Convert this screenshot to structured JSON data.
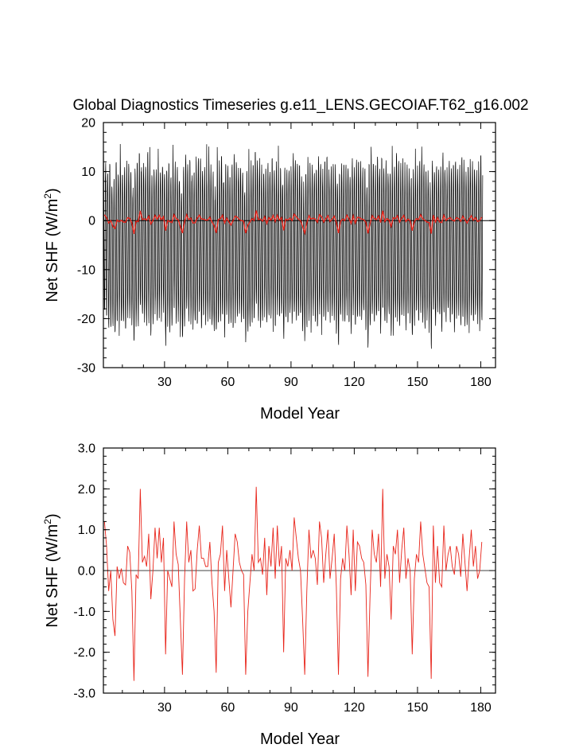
{
  "title": "Global Diagnostics Timeseries g.e11_LENS.GECOIAF.T62_g16.002",
  "colors": {
    "monthly": "#000000",
    "annual": "#e8251b",
    "zero_line": "#000000"
  },
  "chart_data": [
    {
      "type": "line",
      "ylabel": "Net SHF (W/m",
      "ylabel_sup": "2",
      "ylabel_close": ")",
      "xlabel": "Model Year",
      "xlim": [
        1,
        187
      ],
      "ylim": [
        -30,
        20
      ],
      "x_tick_labels": [
        "30",
        "60",
        "90",
        "120",
        "150",
        "180"
      ],
      "y_tick_labels": [
        "20",
        "10",
        "0",
        "-10",
        "-20",
        "-30"
      ],
      "grid": false,
      "series": [
        {
          "kind": "monthly",
          "cycle_amplitude_approx": 15,
          "typical_min": -21,
          "typical_max": 11,
          "extreme_min": -24,
          "extreme_max": 16
        },
        {
          "kind": "annual",
          "values_ref": "annual_means"
        }
      ]
    },
    {
      "type": "line",
      "ylabel": "Net SHF (W/m",
      "ylabel_sup": "2",
      "ylabel_close": ")",
      "xlabel": "Model Year",
      "xlim": [
        1,
        187
      ],
      "ylim": [
        -3.0,
        3.0
      ],
      "x_tick_labels": [
        "30",
        "60",
        "90",
        "120",
        "150",
        "180"
      ],
      "y_tick_labels": [
        "3.0",
        "2.0",
        "1.0",
        "0.0",
        "-1.0",
        "-2.0",
        "-3.0"
      ],
      "grid": false,
      "reference_line": 0
    }
  ],
  "annual_means": [
    1.2,
    0.6,
    -0.5,
    0.0,
    -1.2,
    -1.6,
    0.1,
    -0.2,
    0.05,
    -0.3,
    -0.35,
    0.6,
    0.45,
    -0.5,
    -2.7,
    -0.1,
    -0.2,
    2.0,
    0.2,
    0.35,
    0.1,
    0.9,
    -0.7,
    0.0,
    1.05,
    0.3,
    1.05,
    0.2,
    0.8,
    -2.05,
    0.0,
    -0.2,
    -0.4,
    1.2,
    0.4,
    0.15,
    -1.2,
    -2.55,
    -0.2,
    1.2,
    0.2,
    0.5,
    -0.5,
    -0.45,
    0.5,
    1.1,
    0.3,
    0.3,
    0.1,
    0.1,
    0.7,
    -0.3,
    -1.0,
    -2.5,
    0.2,
    0.4,
    1.1,
    -0.5,
    0.5,
    -0.2,
    -0.9,
    0.0,
    0.9,
    0.7,
    0.2,
    0.0,
    -0.1,
    -2.55,
    -1.0,
    -0.3,
    0.4,
    0.0,
    2.05,
    0.2,
    0.3,
    -0.1,
    0.8,
    -0.6,
    0.6,
    0.1,
    1.05,
    -0.2,
    1.1,
    0.1,
    0.6,
    -2.0,
    0.3,
    0.1,
    0.5,
    0.0,
    1.3,
    0.8,
    0.3,
    0.0,
    -1.2,
    -2.55,
    -0.5,
    1.0,
    0.3,
    0.5,
    0.3,
    -0.35,
    1.2,
    0.8,
    -0.3,
    0.4,
    1.0,
    -0.2,
    0.3,
    0.9,
    -0.4,
    -2.55,
    -0.2,
    0.3,
    0.0,
    1.1,
    0.4,
    -0.6,
    1.0,
    -0.5,
    0.7,
    0.6,
    0.3,
    0.2,
    -0.35,
    -2.6,
    -0.6,
    1.0,
    0.4,
    0.2,
    0.9,
    -0.4,
    2.0,
    -0.2,
    0.4,
    0.1,
    -1.2,
    0.6,
    0.4,
    1.0,
    -0.3,
    0.5,
    1.05,
    -0.2,
    0.3,
    0.0,
    -2.05,
    -0.2,
    0.4,
    0.2,
    1.2,
    0.4,
    0.05,
    -0.3,
    -0.4,
    -2.65,
    1.1,
    -0.3,
    0.6,
    -0.3,
    -0.4,
    1.1,
    0.0,
    0.4,
    0.6,
    0.1,
    -0.1,
    0.6,
    0.4,
    -0.15,
    0.9,
    0.2,
    -0.5,
    0.3,
    1.0,
    0.1,
    0.6,
    -0.2,
    0.0,
    0.7
  ]
}
